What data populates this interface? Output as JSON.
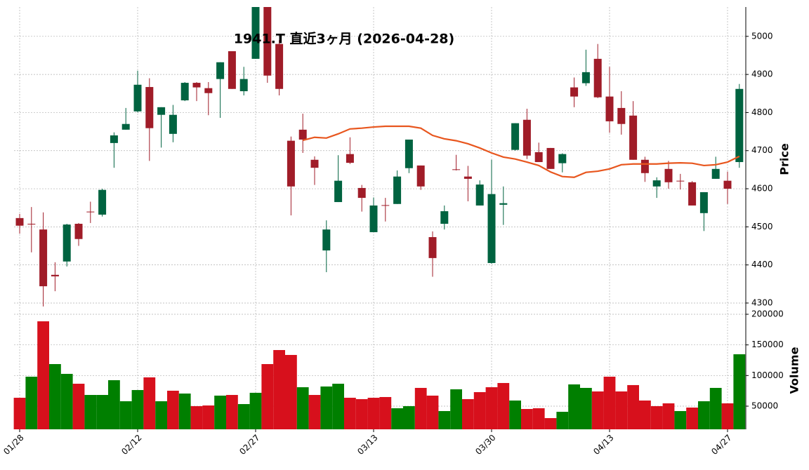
{
  "chart_data": {
    "type": "candlestick",
    "title": "1941.T 直近3ヶ月 (2026-04-28)",
    "categories": [
      "01/28",
      null,
      null,
      null,
      null,
      null,
      null,
      null,
      null,
      null,
      "02/12",
      null,
      null,
      null,
      null,
      null,
      null,
      null,
      null,
      null,
      "02/27",
      null,
      null,
      null,
      null,
      null,
      null,
      null,
      null,
      null,
      "03/13",
      null,
      null,
      null,
      null,
      null,
      null,
      null,
      null,
      null,
      "03/30",
      null,
      null,
      null,
      null,
      null,
      null,
      null,
      null,
      null,
      "04/13",
      null,
      null,
      null,
      null,
      null,
      null,
      null,
      null,
      null,
      "04/27",
      null
    ],
    "open": [
      4523,
      4508,
      4493,
      4374,
      4409,
      4508,
      4540,
      4532,
      4720,
      4755,
      4803,
      4867,
      4794,
      4744,
      4832,
      4878,
      4864,
      4888,
      4961,
      4856,
      4941,
      5090,
      4980,
      4726,
      4755,
      4676,
      4438,
      4565,
      4691,
      4602,
      4486,
      4557,
      4560,
      4654,
      4661,
      4473,
      4508,
      4651,
      4632,
      4556,
      4405,
      4558,
      4702,
      4781,
      4696,
      4707,
      4667,
      4866,
      4877,
      4941,
      4842,
      4812,
      4792,
      4676,
      4606,
      4652,
      4621,
      4617,
      4536,
      4626,
      4621,
      4670
    ],
    "high": [
      4534,
      4552,
      4538,
      4407,
      4508,
      4510,
      4566,
      4600,
      4748,
      4812,
      4910,
      4890,
      4814,
      4820,
      4880,
      4880,
      4880,
      4932,
      4961,
      4920,
      5090,
      5090,
      4990,
      4737,
      4797,
      4685,
      4517,
      4688,
      4735,
      4610,
      4577,
      4576,
      4648,
      4729,
      4661,
      4488,
      4556,
      4689,
      4660,
      4622,
      4676,
      4606,
      4772,
      4810,
      4721,
      4707,
      4693,
      4892,
      4965,
      4980,
      4920,
      4856,
      4830,
      4684,
      4630,
      4673,
      4639,
      4620,
      4591,
      4684,
      4645,
      4875
    ],
    "low": [
      4482,
      4433,
      4291,
      4331,
      4396,
      4450,
      4510,
      4527,
      4655,
      4755,
      4800,
      4673,
      4708,
      4722,
      4830,
      4830,
      4793,
      4786,
      4862,
      4845,
      4941,
      4878,
      4845,
      4530,
      4694,
      4610,
      4381,
      4565,
      4665,
      4540,
      4486,
      4514,
      4560,
      4641,
      4597,
      4369,
      4493,
      4648,
      4567,
      4556,
      4403,
      4505,
      4700,
      4678,
      4670,
      4652,
      4643,
      4814,
      4870,
      4838,
      4747,
      4742,
      4676,
      4618,
      4576,
      4600,
      4598,
      4556,
      4489,
      4626,
      4560,
      4655
    ],
    "close": [
      4503,
      4507,
      4344,
      4370,
      4506,
      4468,
      4539,
      4597,
      4740,
      4770,
      4873,
      4759,
      4814,
      4794,
      4878,
      4866,
      4851,
      4932,
      4862,
      4888,
      5090,
      4897,
      4862,
      4606,
      4729,
      4655,
      4493,
      4621,
      4668,
      4576,
      4556,
      4556,
      4632,
      4729,
      4606,
      4418,
      4541,
      4650,
      4626,
      4611,
      4586,
      4562,
      4772,
      4687,
      4670,
      4652,
      4691,
      4842,
      4906,
      4840,
      4777,
      4770,
      4676,
      4641,
      4622,
      4617,
      4620,
      4556,
      4591,
      4652,
      4600,
      4862
    ],
    "up_color": "#006340",
    "down_color": "#a01c28",
    "ma": {
      "color": "#e8561e",
      "values": [
        null,
        null,
        null,
        null,
        null,
        null,
        null,
        null,
        null,
        null,
        null,
        null,
        null,
        null,
        null,
        null,
        null,
        null,
        null,
        null,
        null,
        null,
        null,
        null,
        4727,
        4735,
        4733,
        4744,
        4757,
        4759,
        4762,
        4764,
        4764,
        4764,
        4759,
        4740,
        4731,
        4726,
        4718,
        4707,
        4694,
        4683,
        4678,
        4670,
        4661,
        4644,
        4632,
        4630,
        4643,
        4646,
        4652,
        4663,
        4665,
        4665,
        4665,
        4667,
        4668,
        4667,
        4661,
        4663,
        4670,
        4685
      ]
    },
    "ylabel": "Price",
    "ylim": [
      4276,
      5077
    ],
    "yticks": [
      4300,
      4400,
      4500,
      4600,
      4700,
      4800,
      4900,
      5000
    ],
    "volume": {
      "ylabel": "Volume",
      "ylim": [
        12200,
        200000
      ],
      "yticks": [
        50000,
        100000,
        150000,
        200000
      ],
      "values": [
        63700,
        98100,
        188500,
        118700,
        102700,
        86600,
        68300,
        68300,
        92400,
        58000,
        76300,
        97000,
        58000,
        75200,
        70600,
        50000,
        51100,
        67200,
        68300,
        53400,
        71800,
        118700,
        141600,
        133600,
        80900,
        68300,
        82100,
        86600,
        63700,
        61500,
        63700,
        64900,
        46600,
        50000,
        79800,
        67200,
        42000,
        77500,
        61500,
        72900,
        80900,
        87800,
        59200,
        45400,
        46600,
        30500,
        40800,
        85500,
        79800,
        74000,
        98100,
        74000,
        84400,
        59200,
        50000,
        54600,
        42000,
        47700,
        58000,
        79800,
        54600,
        134700
      ],
      "colors": [
        "#d7101c",
        "#007f00",
        "#d7101c",
        "#007f00",
        "#007f00",
        "#d7101c",
        "#007f00",
        "#007f00",
        "#007f00",
        "#007f00",
        "#007f00",
        "#d7101c",
        "#007f00",
        "#d7101c",
        "#007f00",
        "#d7101c",
        "#d7101c",
        "#007f00",
        "#d7101c",
        "#007f00",
        "#007f00",
        "#d7101c",
        "#d7101c",
        "#d7101c",
        "#007f00",
        "#d7101c",
        "#007f00",
        "#007f00",
        "#d7101c",
        "#d7101c",
        "#d7101c",
        "#d7101c",
        "#007f00",
        "#007f00",
        "#d7101c",
        "#d7101c",
        "#007f00",
        "#007f00",
        "#d7101c",
        "#d7101c",
        "#d7101c",
        "#d7101c",
        "#007f00",
        "#d7101c",
        "#d7101c",
        "#d7101c",
        "#007f00",
        "#007f00",
        "#007f00",
        "#d7101c",
        "#d7101c",
        "#d7101c",
        "#d7101c",
        "#d7101c",
        "#d7101c",
        "#d7101c",
        "#007f00",
        "#d7101c",
        "#007f00",
        "#007f00",
        "#d7101c",
        "#007f00"
      ]
    },
    "grid": true
  }
}
